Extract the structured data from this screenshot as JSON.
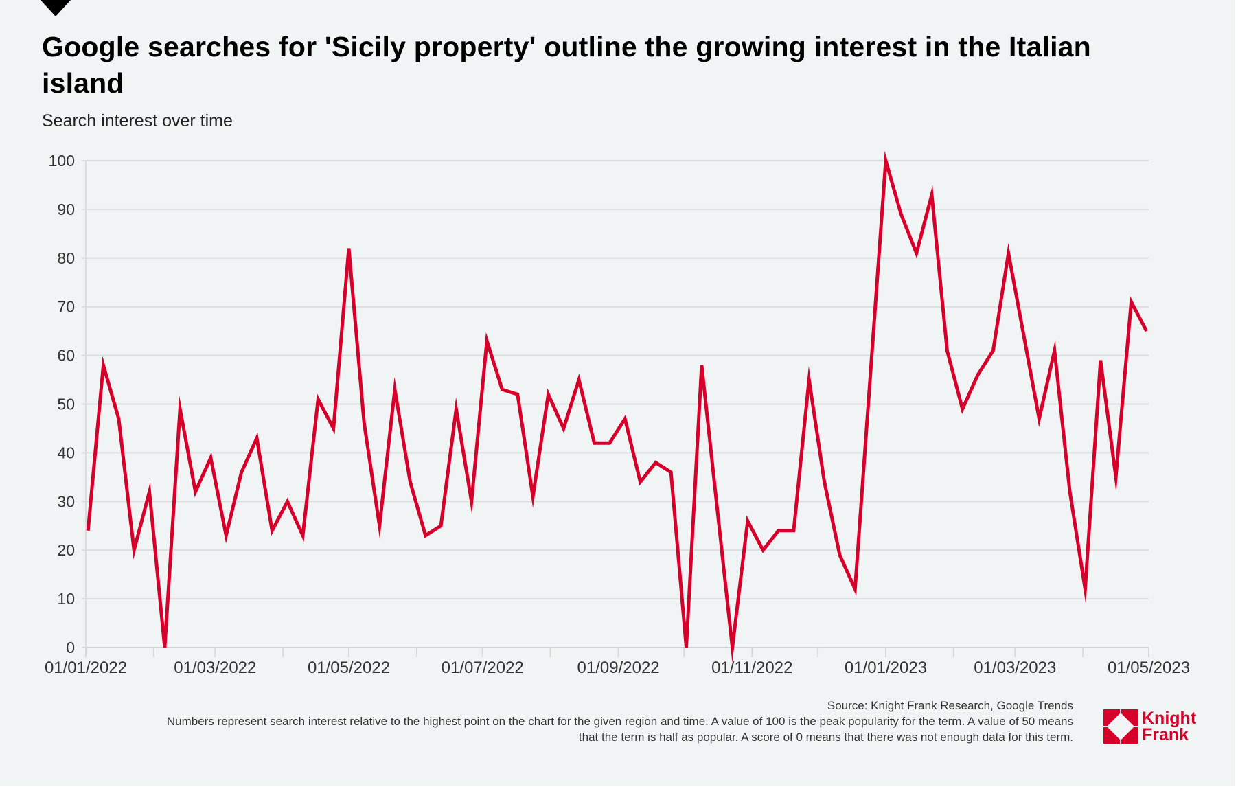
{
  "header": {
    "title": "Google searches for 'Sicily property' outline the growing interest in the Italian island",
    "subtitle": "Search interest over time"
  },
  "footer": {
    "source": "Source: Knight Frank Research, Google Trends",
    "note_line1": "Numbers represent search interest relative to the highest point on the chart for the given region and time. A value of 100 is the peak popularity for the term. A value of 50 means",
    "note_line2": "that the term is half as popular. A score of 0 means that there was not enough data for this term."
  },
  "brand": {
    "name_line1": "Knight",
    "name_line2": "Frank",
    "color": "#d6002a"
  },
  "chart_data": {
    "type": "line",
    "title": "Google searches for 'Sicily property' outline the growing interest in the Italian island",
    "subtitle": "Search interest over time",
    "xlabel": "",
    "ylabel": "",
    "ylim": [
      0,
      100
    ],
    "yticks": [
      0,
      10,
      20,
      30,
      40,
      50,
      60,
      70,
      80,
      90,
      100
    ],
    "xlim": [
      "2022-01-01",
      "2023-05-01"
    ],
    "xtick_labels": [
      "01/01/2022",
      "01/03/2022",
      "01/05/2022",
      "01/07/2022",
      "01/09/2022",
      "01/11/2022",
      "01/01/2023",
      "01/03/2023",
      "01/05/2023"
    ],
    "grid": true,
    "legend": "none",
    "frequency": "weekly",
    "first_week": "2022-01-02",
    "series": [
      {
        "name": "Sicily property",
        "color": "#d6002a",
        "values": [
          24,
          58,
          47,
          20,
          32,
          0,
          49,
          32,
          39,
          23,
          36,
          43,
          24,
          30,
          23,
          51,
          45,
          82,
          46,
          25,
          53,
          34,
          23,
          25,
          49,
          30,
          63,
          53,
          52,
          31,
          52,
          45,
          55,
          42,
          42,
          47,
          34,
          38,
          36,
          0,
          58,
          29,
          0,
          26,
          20,
          24,
          24,
          55,
          34,
          19,
          12,
          56,
          100,
          89,
          81,
          93,
          61,
          49,
          56,
          61,
          81,
          64,
          47,
          61,
          32,
          12,
          59,
          35,
          71,
          65
        ]
      }
    ],
    "source": "Knight Frank Research, Google Trends"
  }
}
